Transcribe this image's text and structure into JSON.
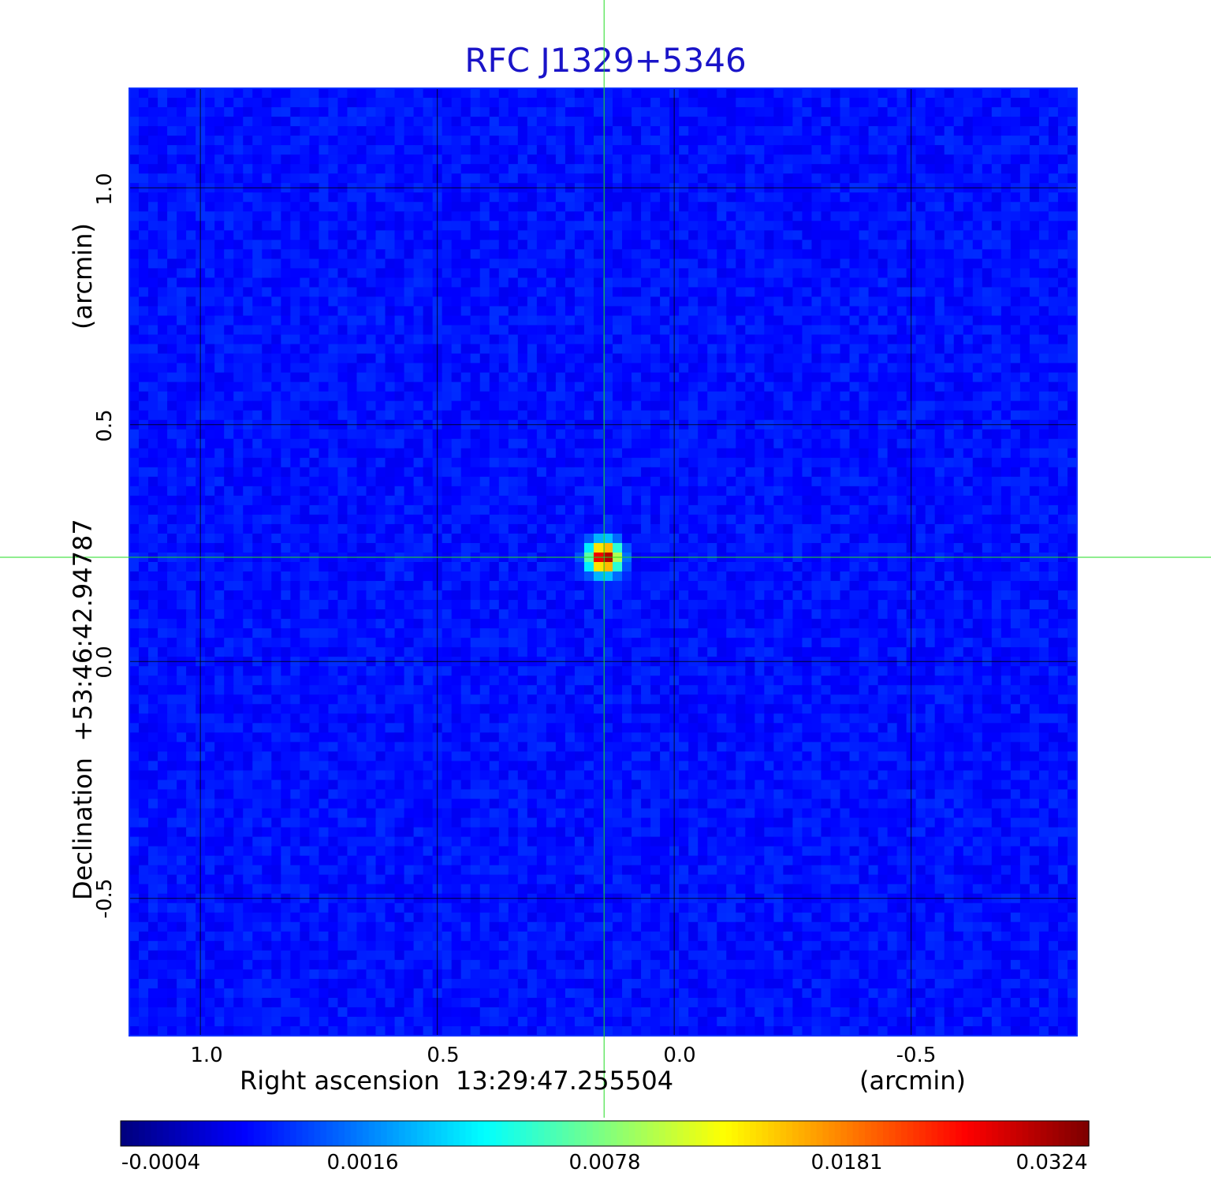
{
  "chart_data": {
    "type": "heatmap",
    "title": "RFC J1329+5346",
    "xlabel": "Right ascension  13:29:47.255504",
    "xunit": "(arcmin)",
    "ylabel": "Declination  +53:46:42.94787",
    "yunit": "(arcmin)",
    "xlim": [
      1.15,
      -0.85
    ],
    "ylim": [
      -0.79,
      1.21
    ],
    "xticks": [
      1.0,
      0.5,
      0.0,
      -0.5
    ],
    "xtick_labels": [
      "1.0",
      "0.5",
      "0.0",
      "-0.5"
    ],
    "yticks": [
      1.0,
      0.5,
      0.0,
      -0.5
    ],
    "yticks_labels": [
      "1.0",
      "0.5",
      "0.0",
      "-0.5"
    ],
    "grid": true,
    "crosshair": {
      "x": 0.148,
      "y": 0.22
    },
    "source": {
      "x": 0.148,
      "y": 0.22,
      "peak": 0.0324,
      "fwhm_arcmin": 0.045
    },
    "colorbar": {
      "ticks": [
        -0.0004,
        0.0016,
        0.0078,
        0.0181,
        0.0324
      ],
      "tick_labels": [
        "-0.0004",
        "0.0016",
        "0.0078",
        "0.0181",
        "0.0324"
      ],
      "colormap": "jet",
      "placement": "bottom"
    },
    "noise_range": [
      -0.0004,
      0.0016
    ]
  },
  "colors": {
    "title": "#1a14c8",
    "crosshair": "#22dd22",
    "grid": "#000000",
    "frame": "#1030ff"
  }
}
